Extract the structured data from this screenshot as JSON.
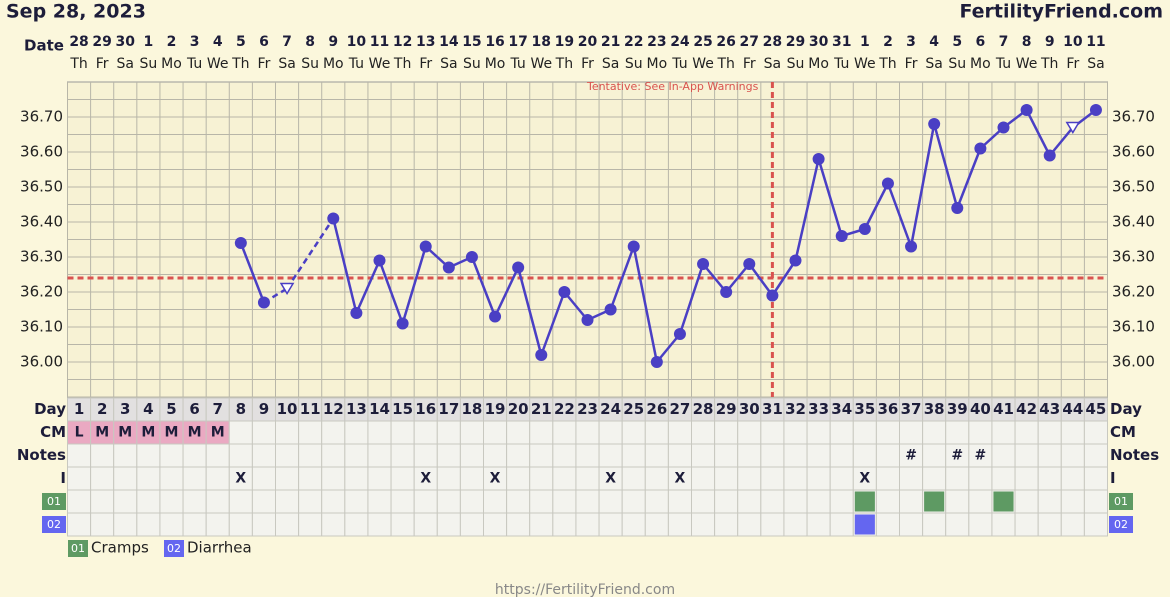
{
  "header": {
    "date": "Sep 28, 2023",
    "brand": "FertilityFriend.com"
  },
  "chart_data": {
    "type": "line",
    "row_labels": {
      "date": "Date",
      "day": "Day",
      "cm": "CM",
      "notes": "Notes",
      "i": "I"
    },
    "dates": [
      "28",
      "29",
      "30",
      "1",
      "2",
      "3",
      "4",
      "5",
      "6",
      "7",
      "8",
      "9",
      "10",
      "11",
      "12",
      "13",
      "14",
      "15",
      "16",
      "17",
      "18",
      "19",
      "20",
      "21",
      "22",
      "23",
      "24",
      "25",
      "26",
      "27",
      "28",
      "29",
      "30",
      "31",
      "1",
      "2",
      "3",
      "4",
      "5",
      "6",
      "7",
      "8",
      "9",
      "10",
      "11"
    ],
    "weekdays": [
      "Th",
      "Fr",
      "Sa",
      "Su",
      "Mo",
      "Tu",
      "We",
      "Th",
      "Fr",
      "Sa",
      "Su",
      "Mo",
      "Tu",
      "We",
      "Th",
      "Fr",
      "Sa",
      "Su",
      "Mo",
      "Tu",
      "We",
      "Th",
      "Fr",
      "Sa",
      "Su",
      "Mo",
      "Tu",
      "We",
      "Th",
      "Fr",
      "Sa",
      "Su",
      "Mo",
      "Tu",
      "We",
      "Th",
      "Fr",
      "Sa",
      "Su",
      "Mo",
      "Tu",
      "We",
      "Th",
      "Fr",
      "Sa"
    ],
    "days": [
      1,
      2,
      3,
      4,
      5,
      6,
      7,
      8,
      9,
      10,
      11,
      12,
      13,
      14,
      15,
      16,
      17,
      18,
      19,
      20,
      21,
      22,
      23,
      24,
      25,
      26,
      27,
      28,
      29,
      30,
      31,
      32,
      33,
      34,
      35,
      36,
      37,
      38,
      39,
      40,
      41,
      42,
      43,
      44,
      45
    ],
    "values": [
      null,
      null,
      null,
      null,
      null,
      null,
      null,
      36.34,
      36.17,
      36.21,
      null,
      36.41,
      36.14,
      36.29,
      36.11,
      36.33,
      36.27,
      36.3,
      36.13,
      36.27,
      36.02,
      36.2,
      36.12,
      36.15,
      36.33,
      36.0,
      36.08,
      36.28,
      36.2,
      36.28,
      36.19,
      36.29,
      36.58,
      36.36,
      36.38,
      36.51,
      36.33,
      36.68,
      36.44,
      36.61,
      36.67,
      36.72,
      36.59,
      36.67,
      36.72
    ],
    "color": "#4a3fc4",
    "ylim": [
      35.9,
      36.8
    ],
    "yticks": [
      {
        "value": 36.0,
        "label": "36.00"
      },
      {
        "value": 36.1,
        "label": "36.10"
      },
      {
        "value": 36.2,
        "label": "36.20"
      },
      {
        "value": 36.3,
        "label": "36.30"
      },
      {
        "value": 36.4,
        "label": "36.40"
      },
      {
        "value": 36.5,
        "label": "36.50"
      },
      {
        "value": 36.6,
        "label": "36.60"
      },
      {
        "value": 36.7,
        "label": "36.70"
      }
    ],
    "grid": true,
    "coverline": 36.24,
    "ovulation_day": 31,
    "ovulation_note": "Tentative: See In-App Warnings",
    "open_markers": [
      10,
      44
    ],
    "dashed_markers": [
      10
    ],
    "cm": [
      "L",
      "M",
      "M",
      "M",
      "M",
      "M",
      "M",
      null,
      null,
      null,
      null,
      null,
      null,
      null,
      null,
      null,
      null,
      null,
      null,
      null,
      null,
      null,
      null,
      null,
      null,
      null,
      null,
      null,
      null,
      null,
      null,
      null,
      null,
      null,
      null,
      null,
      null,
      null,
      null,
      null,
      null,
      null,
      null,
      null,
      null
    ],
    "notes": [
      null,
      null,
      null,
      null,
      null,
      null,
      null,
      null,
      null,
      null,
      null,
      null,
      null,
      null,
      null,
      null,
      null,
      null,
      null,
      null,
      null,
      null,
      null,
      null,
      null,
      null,
      null,
      null,
      null,
      null,
      null,
      null,
      null,
      null,
      null,
      null,
      "#",
      null,
      "#",
      "#",
      null,
      null,
      null,
      null,
      null
    ],
    "intercourse": [
      null,
      null,
      null,
      null,
      null,
      null,
      null,
      "X",
      null,
      null,
      null,
      null,
      null,
      null,
      null,
      "X",
      null,
      null,
      "X",
      null,
      null,
      null,
      null,
      "X",
      null,
      null,
      "X",
      null,
      null,
      null,
      null,
      null,
      null,
      null,
      "X",
      null,
      null,
      null,
      null,
      null,
      null,
      null,
      null,
      null,
      null
    ],
    "symptoms": [
      {
        "code": "01",
        "name": "Cramps",
        "color": "#5e9a63",
        "days": [
          35,
          38,
          41
        ]
      },
      {
        "code": "02",
        "name": "Diarrhea",
        "color": "#6466f0",
        "days": [
          35
        ]
      }
    ]
  },
  "footer": "https://FertilityFriend.com"
}
